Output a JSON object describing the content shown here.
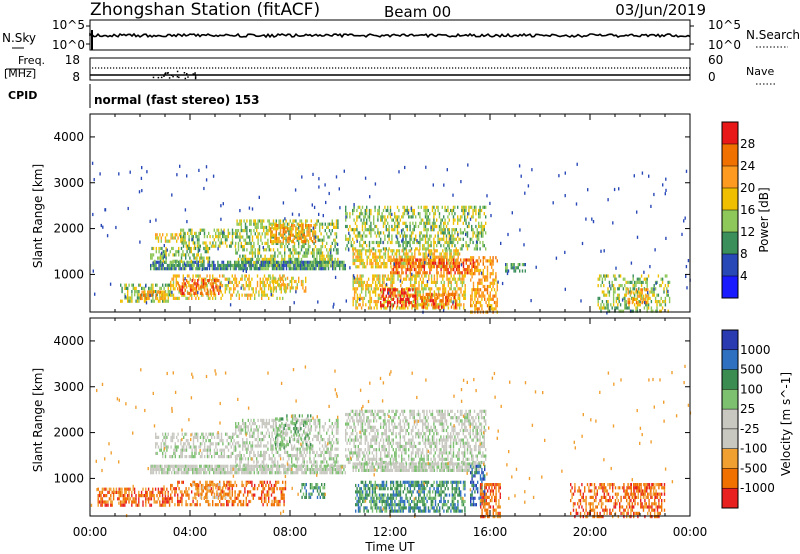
{
  "header": {
    "station": "Zhongshan Station (fitACF)",
    "beam": "Beam 00",
    "date": "03/Jun/2019"
  },
  "noise_panel": {
    "left_label": "N.Sky",
    "left_ticks": [
      "10^5",
      "10^0"
    ],
    "right_label": "N.Search",
    "right_ticks": [
      "10^5",
      "10^0"
    ]
  },
  "freq_panel": {
    "left_label_1": "Freq.",
    "left_label_2": "[MHz]",
    "left_ticks": [
      "18",
      "8"
    ],
    "right_label": "Nave",
    "right_ticks": [
      "60",
      "0"
    ]
  },
  "cpid_panel": {
    "label": "CPID",
    "value": "normal (fast stereo) 153"
  },
  "chart_data": [
    {
      "type": "heatmap",
      "title": "Power",
      "ylabel": "Slant Range [km]",
      "xlabel": "",
      "ylim": [
        180,
        4500
      ],
      "y_ticks": [
        "1000",
        "2000",
        "3000",
        "4000"
      ],
      "colorbar_label": "Power [dB]",
      "colorbar_ticks": [
        "4",
        "8",
        "12",
        "16",
        "20",
        "24",
        "28"
      ],
      "colorbar_colors": [
        "#1a1aff",
        "#2848b8",
        "#3a8f5a",
        "#8fc85a",
        "#f0c000",
        "#ff9a20",
        "#f07000",
        "#e81818"
      ],
      "regions": [
        {
          "t0": 2.6,
          "t1": 3.8,
          "r0": 1700,
          "r1": 1900,
          "level": 4,
          "density": 0.6
        },
        {
          "t0": 3.6,
          "t1": 5.8,
          "r0": 1600,
          "r1": 2000,
          "level": 3,
          "density": 0.55
        },
        {
          "t0": 5.8,
          "t1": 9.9,
          "r0": 1200,
          "r1": 2200,
          "level": 3,
          "density": 0.5
        },
        {
          "t0": 7.2,
          "t1": 9.0,
          "r0": 1700,
          "r1": 2100,
          "level": 5,
          "density": 0.6
        },
        {
          "t0": 2.4,
          "t1": 10.2,
          "r0": 1150,
          "r1": 1300,
          "level": 2,
          "density": 0.8
        },
        {
          "t0": 2.4,
          "t1": 4.8,
          "r0": 1300,
          "r1": 1600,
          "level": 3,
          "density": 0.5
        },
        {
          "t0": 1.2,
          "t1": 3.2,
          "r0": 400,
          "r1": 800,
          "level": 3,
          "density": 0.55
        },
        {
          "t0": 2.0,
          "t1": 3.0,
          "r0": 450,
          "r1": 650,
          "level": 5,
          "density": 0.7
        },
        {
          "t0": 3.2,
          "t1": 7.8,
          "r0": 450,
          "r1": 1000,
          "level": 4,
          "density": 0.45
        },
        {
          "t0": 3.5,
          "t1": 5.2,
          "r0": 600,
          "r1": 900,
          "level": 6,
          "density": 0.5
        },
        {
          "t0": 7.2,
          "t1": 8.6,
          "r0": 650,
          "r1": 950,
          "level": 4,
          "density": 0.45
        },
        {
          "t0": 10.2,
          "t1": 15.8,
          "r0": 1550,
          "r1": 2500,
          "level": 3,
          "density": 0.45
        },
        {
          "t0": 10.5,
          "t1": 14.8,
          "r0": 1200,
          "r1": 1550,
          "level": 4,
          "density": 0.65
        },
        {
          "t0": 12.0,
          "t1": 15.4,
          "r0": 1050,
          "r1": 1350,
          "level": 6,
          "density": 0.7
        },
        {
          "t0": 10.5,
          "t1": 15.0,
          "r0": 280,
          "r1": 1000,
          "level": 4,
          "density": 0.55
        },
        {
          "t0": 11.6,
          "t1": 13.0,
          "r0": 350,
          "r1": 700,
          "level": 7,
          "density": 0.5
        },
        {
          "t0": 13.2,
          "t1": 14.6,
          "r0": 300,
          "r1": 600,
          "level": 6,
          "density": 0.5
        },
        {
          "t0": 15.2,
          "t1": 16.3,
          "r0": 180,
          "r1": 1400,
          "level": 5,
          "density": 0.5
        },
        {
          "t0": 16.6,
          "t1": 17.4,
          "r0": 1050,
          "r1": 1250,
          "level": 2,
          "density": 0.5
        },
        {
          "t0": 20.3,
          "t1": 23.2,
          "r0": 200,
          "r1": 1000,
          "level": 3,
          "density": 0.4
        },
        {
          "t0": 21.5,
          "t1": 22.3,
          "r0": 400,
          "r1": 700,
          "level": 5,
          "density": 0.5
        }
      ],
      "scatter_count": 230,
      "scatter_level": 1
    },
    {
      "type": "heatmap",
      "title": "Velocity",
      "ylabel": "Slant Range [km]",
      "xlabel": "Time UT",
      "ylim": [
        180,
        4500
      ],
      "y_ticks": [
        "1000",
        "2000",
        "3000",
        "4000"
      ],
      "x_ticks": [
        "00:00",
        "04:00",
        "08:00",
        "12:00",
        "16:00",
        "20:00",
        "00:00"
      ],
      "colorbar_label": "Velocity [m s^-1]",
      "colorbar_ticks": [
        "1000",
        "500",
        "100",
        "25",
        "-25",
        "-100",
        "-500",
        "-1000"
      ],
      "colorbar_colors": [
        "#2a3ab0",
        "#3070c0",
        "#3a8c50",
        "#7cc070",
        "#c8c8c0",
        "#c8c8c0",
        "#f0a030",
        "#f07000",
        "#e82020"
      ],
      "regions": [
        {
          "t0": 2.4,
          "t1": 10.2,
          "r0": 1150,
          "r1": 1300,
          "level": 4,
          "density": 0.85
        },
        {
          "t0": 2.6,
          "t1": 5.8,
          "r0": 1450,
          "r1": 2000,
          "level": 4,
          "density": 0.45
        },
        {
          "t0": 5.8,
          "t1": 9.9,
          "r0": 1300,
          "r1": 2300,
          "level": 4,
          "density": 0.45
        },
        {
          "t0": 7.4,
          "t1": 8.8,
          "r0": 1700,
          "r1": 2400,
          "level": 3,
          "density": 0.35
        },
        {
          "t0": 10.2,
          "t1": 15.8,
          "r0": 1350,
          "r1": 2500,
          "level": 4,
          "density": 0.5
        },
        {
          "t0": 10.5,
          "t1": 15.6,
          "r0": 1150,
          "r1": 1350,
          "level": 4,
          "density": 0.85
        },
        {
          "t0": 0.3,
          "t1": 3.2,
          "r0": 450,
          "r1": 800,
          "level": 7,
          "density": 0.6
        },
        {
          "t0": 3.2,
          "t1": 7.8,
          "r0": 450,
          "r1": 950,
          "level": 7,
          "density": 0.45
        },
        {
          "t0": 4.0,
          "t1": 5.6,
          "r0": 600,
          "r1": 900,
          "level": 6,
          "density": 0.5
        },
        {
          "t0": 8.4,
          "t1": 9.4,
          "r0": 600,
          "r1": 900,
          "level": 2,
          "density": 0.5
        },
        {
          "t0": 10.6,
          "t1": 15.0,
          "r0": 300,
          "r1": 950,
          "level": 2,
          "density": 0.65
        },
        {
          "t0": 15.2,
          "t1": 15.8,
          "r0": 400,
          "r1": 1300,
          "level": 1,
          "density": 0.55
        },
        {
          "t0": 15.6,
          "t1": 16.4,
          "r0": 180,
          "r1": 900,
          "level": 7,
          "density": 0.55
        },
        {
          "t0": 19.2,
          "t1": 23.0,
          "r0": 200,
          "r1": 900,
          "level": 7,
          "density": 0.45
        },
        {
          "t0": 21.4,
          "t1": 22.6,
          "r0": 600,
          "r1": 900,
          "level": 7,
          "density": 0.55
        }
      ],
      "scatter_count": 200,
      "scatter_level": 6
    }
  ]
}
